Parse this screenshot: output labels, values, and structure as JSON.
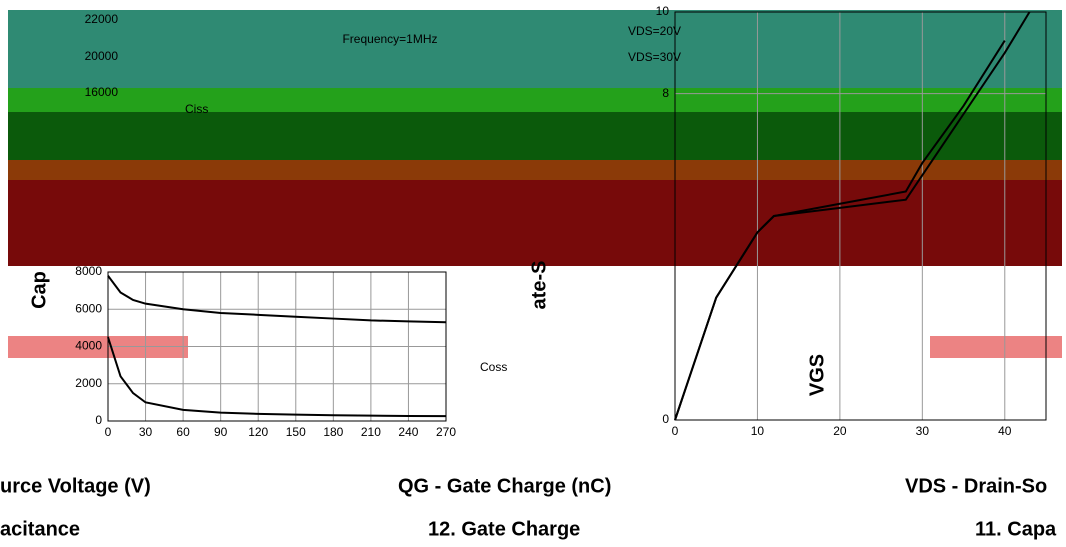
{
  "chart_data": [
    {
      "type": "line",
      "title": "acitance",
      "x_label": "urce Voltage (V)",
      "y_label": "Cap",
      "annotation": "Frequency=1MHz",
      "x": [
        0,
        10,
        20,
        30,
        60,
        90,
        120,
        150,
        180,
        210,
        240,
        270
      ],
      "series": [
        {
          "name": "Ciss",
          "color": "#000000",
          "values": [
            7800,
            6900,
            6500,
            6300,
            6000,
            5800,
            5700,
            5600,
            5500,
            5400,
            5350,
            5300
          ]
        },
        {
          "name": "Coss",
          "color": "#000000",
          "values": [
            4500,
            2400,
            1500,
            1000,
            600,
            450,
            380,
            340,
            310,
            290,
            270,
            260
          ]
        }
      ],
      "xlim": [
        0,
        270
      ],
      "xticks": [
        0,
        30,
        60,
        90,
        120,
        150,
        180,
        210,
        240,
        270
      ],
      "ylim": [
        0,
        8000
      ],
      "yticks": [
        0,
        2000,
        4000,
        6000,
        8000
      ],
      "grid": true
    },
    {
      "type": "line",
      "title": "12. Gate Charge",
      "x_label": "QG - Gate Charge (nC)",
      "y_label": "ate-S",
      "x": [
        0,
        5,
        10,
        12,
        20,
        28,
        30,
        35,
        40,
        43
      ],
      "series": [
        {
          "name": "VDS=20V",
          "color": "#000000",
          "values": [
            0,
            3,
            4.6,
            5,
            5.2,
            5.4,
            6,
            7.5,
            9,
            10
          ]
        },
        {
          "name": "VDS=30V",
          "color": "#000000",
          "values": [
            0,
            3,
            4.6,
            5,
            5.3,
            5.6,
            6.3,
            7.7,
            9.3,
            null
          ]
        }
      ],
      "xlim": [
        0,
        45
      ],
      "xticks": [
        0,
        10,
        20,
        30,
        40
      ],
      "ylim": [
        0,
        10
      ],
      "yticks": [
        0,
        8,
        10
      ],
      "grid": true
    }
  ],
  "fragments": [
    "22000",
    "20000",
    "16000",
    "VGS",
    "VDS - Drain-So",
    "11. Capa"
  ]
}
